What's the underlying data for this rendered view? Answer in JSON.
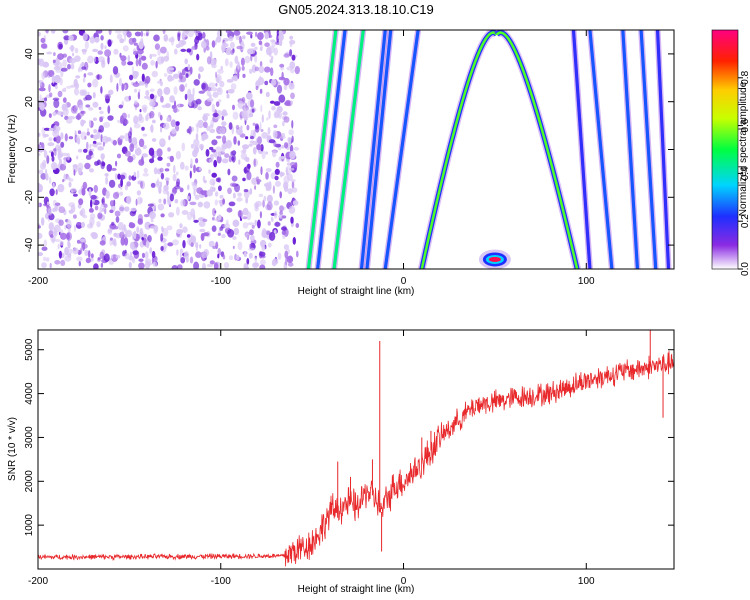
{
  "title": "GN05.2024.313.18.10.C19",
  "chart_data": [
    {
      "type": "heatmap",
      "xlabel": "Height of straight line (km)",
      "ylabel": "Frequency (Hz)",
      "xlim": [
        -200,
        148
      ],
      "ylim": [
        -50,
        50
      ],
      "xticks": [
        "-200",
        "-100",
        "0",
        "100"
      ],
      "xtick_values": [
        -200,
        -100,
        0,
        100
      ],
      "yticks": [
        "40",
        "20",
        "0",
        "-20",
        "-40"
      ],
      "ytick_values": [
        40,
        20,
        0,
        -20,
        -40
      ],
      "colorbar": {
        "label": "Normalized spectral amplitude",
        "range": [
          0,
          1
        ],
        "ticks": [
          "0.0",
          "0.2",
          "0.4",
          "0.6",
          "0.8"
        ],
        "tick_values": [
          0.0,
          0.2,
          0.4,
          0.6,
          0.8
        ]
      },
      "noise_region_x": [
        -200,
        -58
      ],
      "straight_tracks": [
        {
          "x_bottom": -52,
          "x_top": -37,
          "amp": 0.45
        },
        {
          "x_bottom": -47,
          "x_top": -32,
          "amp": 0.25
        },
        {
          "x_bottom": -38,
          "x_top": -22,
          "amp": 0.45
        },
        {
          "x_bottom": -23,
          "x_top": -10,
          "amp": 0.25
        },
        {
          "x_bottom": -20,
          "x_top": -7,
          "amp": 0.25
        },
        {
          "x_bottom": -10,
          "x_top": 8,
          "amp": 0.25
        },
        {
          "x_bottom": 102,
          "x_top": 93,
          "amp": 0.2
        },
        {
          "x_bottom": 114,
          "x_top": 102,
          "amp": 0.25
        },
        {
          "x_bottom": 128,
          "x_top": 120,
          "amp": 0.25
        },
        {
          "x_bottom": 138,
          "x_top": 130,
          "amp": 0.25
        },
        {
          "x_bottom": 145,
          "x_top": 139,
          "amp": 0.2
        }
      ],
      "parabola": {
        "apex_x": 51,
        "apex_y": 48,
        "x_at_bottom_left": 10,
        "x_at_bottom_right": 95,
        "amp": 0.55
      },
      "hot_spot": {
        "x": 50,
        "y": -46,
        "amp": 0.95
      }
    },
    {
      "type": "line",
      "xlabel": "Height of straight line (km)",
      "ylabel": "SNR (10 * v/v)",
      "xlim": [
        -200,
        148
      ],
      "ylim": [
        0,
        5450
      ],
      "xticks": [
        "-200",
        "-100",
        "0",
        "100"
      ],
      "xtick_values": [
        -200,
        -100,
        0,
        100
      ],
      "yticks": [
        "1000",
        "2000",
        "3000",
        "4000",
        "5000"
      ],
      "ytick_values": [
        1000,
        2000,
        3000,
        4000,
        5000
      ],
      "color": "#e8282b",
      "x": [
        -200,
        -150,
        -100,
        -65,
        -50,
        -45,
        -40,
        -30,
        -25,
        -20,
        -15,
        -12,
        -10,
        -5,
        0,
        5,
        10,
        20,
        30,
        40,
        50,
        60,
        80,
        90,
        100,
        120,
        140,
        148
      ],
      "y": [
        270,
        280,
        290,
        300,
        600,
        900,
        1300,
        1500,
        1400,
        1800,
        1600,
        1300,
        1500,
        1900,
        2000,
        2200,
        2400,
        3000,
        3400,
        3750,
        3800,
        3900,
        4000,
        4150,
        4300,
        4500,
        4650,
        4700
      ],
      "spikes": [
        {
          "x": -36,
          "y": 2450
        },
        {
          "x": -29,
          "y": 2100
        },
        {
          "x": -17,
          "y": 2500
        },
        {
          "x": -13,
          "y": 5200
        },
        {
          "x": -12,
          "y": 400
        },
        {
          "x": 10,
          "y": 3000
        },
        {
          "x": 15,
          "y": 3150
        },
        {
          "x": 135,
          "y": 5450
        },
        {
          "x": 142,
          "y": 3450
        }
      ]
    }
  ]
}
